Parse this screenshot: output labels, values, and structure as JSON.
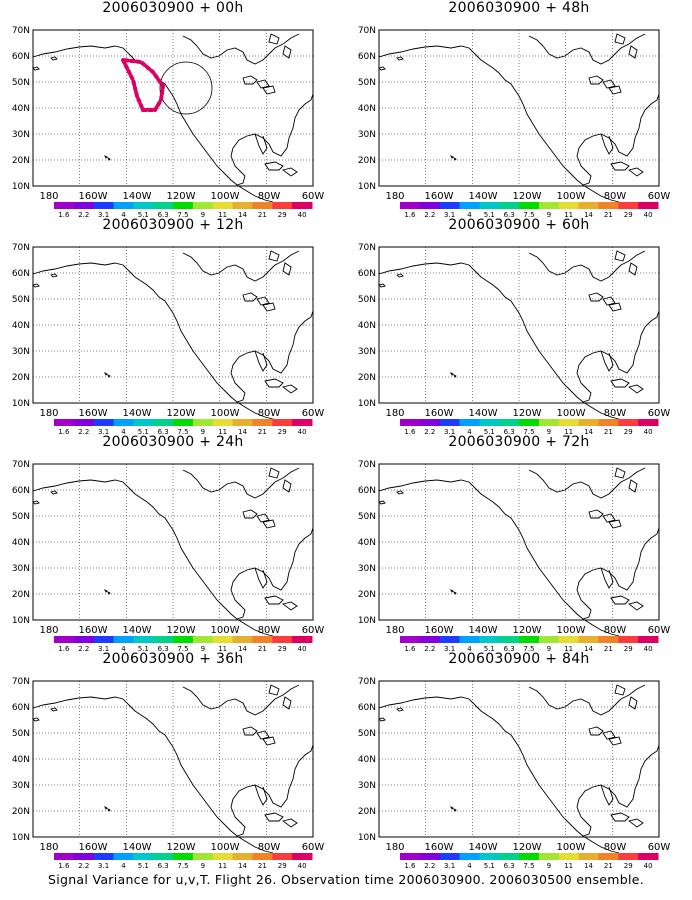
{
  "footer": "Signal Variance for u,v,T. Flight 26. Observation time 2006030900. 2006030500 ensemble.",
  "axis": {
    "lat_labels": [
      "70N",
      "60N",
      "50N",
      "40N",
      "30N",
      "20N",
      "10N"
    ],
    "lon_labels": [
      "180",
      "160W",
      "140W",
      "120W",
      "100W",
      "80W",
      "60W"
    ]
  },
  "colorbar": {
    "labels": [
      "1.6",
      "2.2",
      "3.1",
      "4",
      "5.1",
      "6.3",
      "7.5",
      "9",
      "11",
      "14",
      "21",
      "29",
      "40"
    ],
    "colors": [
      "#a000c8",
      "#8200dc",
      "#1e3cff",
      "#00a0ff",
      "#00c8c8",
      "#00d28c",
      "#00dc00",
      "#a0e632",
      "#e6dc32",
      "#e6af2d",
      "#f08228",
      "#fa3c3c",
      "#dc0064"
    ]
  },
  "panels": [
    {
      "title": "2006030900 + 00h",
      "has_contours": true
    },
    {
      "title": "2006030900 + 48h"
    },
    {
      "title": "2006030900 + 12h"
    },
    {
      "title": "2006030900 + 60h"
    },
    {
      "title": "2006030900 + 24h"
    },
    {
      "title": "2006030900 + 72h"
    },
    {
      "title": "2006030900 + 36h"
    },
    {
      "title": "2006030900 + 84h"
    }
  ]
}
